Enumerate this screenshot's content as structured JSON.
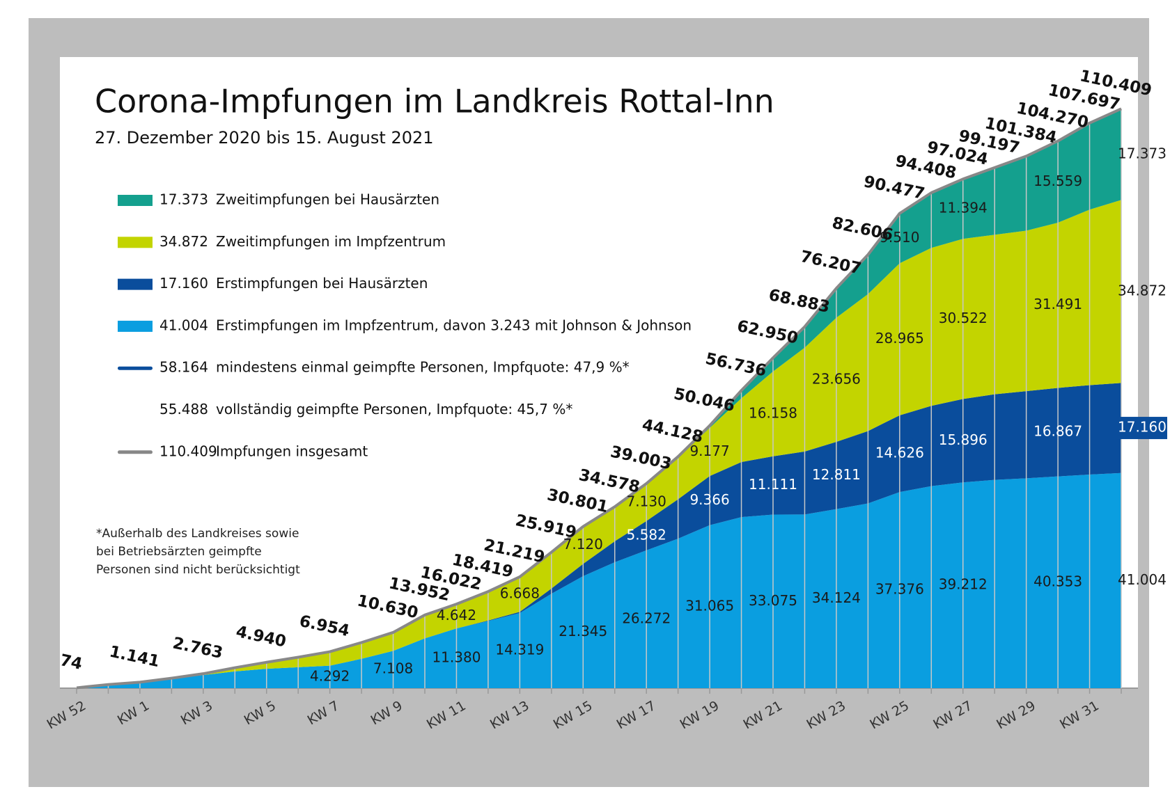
{
  "chart_data": {
    "type": "stacked_area",
    "title": "Corona-Impfungen im Landkreis Rottal-Inn",
    "subtitle": "27. Dezember 2020 bis 15. August 2021",
    "categories": [
      "KW 52",
      null,
      "KW 1",
      null,
      "KW 3",
      null,
      "KW 5",
      null,
      "KW 7",
      null,
      "KW 9",
      null,
      "KW 11",
      null,
      "KW 13",
      null,
      "KW 15",
      null,
      "KW 17",
      null,
      "KW 19",
      null,
      "KW 21",
      null,
      "KW 23",
      null,
      "KW 25",
      null,
      "KW 27",
      null,
      "KW 29",
      null,
      "KW 31",
      null
    ],
    "ylim": [
      0,
      120000
    ],
    "series": [
      {
        "name": "Erstimpfungen im Impfzentrum, davon 3.243 mit Johnson & Johnson",
        "legend_value": "41.004",
        "color": "#0a9ee0",
        "label_color": "#1a1a1a",
        "values": [
          74,
          700,
          1141,
          1800,
          2500,
          3200,
          3700,
          4000,
          4292,
          5600,
          7108,
          9500,
          11380,
          12800,
          14319,
          18000,
          21345,
          24000,
          26272,
          28500,
          31065,
          32600,
          33075,
          33100,
          34124,
          35200,
          37376,
          38500,
          39212,
          39700,
          40000,
          40353,
          40700,
          41004
        ],
        "value_labels": [
          null,
          null,
          null,
          null,
          null,
          null,
          null,
          null,
          "4.292",
          null,
          "7.108",
          null,
          "11.380",
          null,
          "14.319",
          null,
          "21.345",
          null,
          "26.272",
          null,
          "31.065",
          null,
          "33.075",
          null,
          "34.124",
          null,
          "37.376",
          null,
          "39.212",
          null,
          null,
          "40.353",
          null,
          "41.004"
        ]
      },
      {
        "name": "Erstimpfungen bei Hausärzten",
        "legend_value": "17.160",
        "color": "#0a4d9c",
        "label_color": "#ffffff",
        "end_label_box": true,
        "values": [
          0,
          0,
          0,
          0,
          0,
          0,
          0,
          0,
          0,
          0,
          0,
          0,
          0,
          100,
          232,
          1000,
          2336,
          4000,
          5582,
          7500,
          9366,
          10500,
          11111,
          12000,
          12811,
          13800,
          14626,
          15300,
          15896,
          16300,
          16600,
          16867,
          17050,
          17160
        ],
        "value_labels": [
          null,
          null,
          null,
          null,
          null,
          null,
          null,
          null,
          null,
          null,
          null,
          null,
          null,
          null,
          null,
          null,
          null,
          null,
          "5.582",
          null,
          "9.366",
          null,
          "11.111",
          null,
          "12.811",
          null,
          "14.626",
          null,
          "15.896",
          null,
          null,
          "16.867",
          null,
          "17.160"
        ]
      },
      {
        "name": "Zweitimpfungen im Impfzentrum",
        "legend_value": "34.872",
        "color": "#c3d400",
        "label_color": "#1a1a1a",
        "values": [
          0,
          0,
          0,
          100,
          263,
          700,
          1240,
          1900,
          2662,
          3100,
          3522,
          4452,
          4642,
          5519,
          6668,
          6919,
          7120,
          6578,
          7130,
          7978,
          9177,
          12136,
          16158,
          19783,
          23656,
          26106,
          28965,
          30108,
          30522,
          30397,
          30584,
          31491,
          33447,
          34872
        ],
        "value_labels": [
          null,
          null,
          null,
          null,
          null,
          null,
          null,
          null,
          null,
          null,
          null,
          null,
          "4.642",
          null,
          "6.668",
          null,
          "7.120",
          null,
          "7.130",
          null,
          "9.177",
          null,
          "16.158",
          null,
          "23.656",
          null,
          "28.965",
          null,
          "30.522",
          null,
          null,
          "31.491",
          null,
          "34.872"
        ]
      },
      {
        "name": "Zweitimpfungen bei Hausärzten",
        "legend_value": "17.373",
        "color": "#14a08e",
        "label_color": "#1a1a1a",
        "values": [
          0,
          0,
          0,
          0,
          0,
          0,
          0,
          0,
          0,
          0,
          0,
          0,
          0,
          0,
          0,
          0,
          0,
          0,
          19,
          150,
          438,
          1500,
          2606,
          4000,
          5616,
          7500,
          9510,
          10500,
          11394,
          12800,
          14200,
          15559,
          16500,
          17373
        ],
        "value_labels": [
          null,
          null,
          null,
          null,
          null,
          null,
          null,
          null,
          null,
          null,
          null,
          null,
          null,
          null,
          null,
          null,
          null,
          null,
          null,
          null,
          null,
          null,
          null,
          null,
          null,
          null,
          "9.510",
          null,
          "11.394",
          null,
          null,
          "15.559",
          null,
          "17.373"
        ]
      }
    ],
    "total": {
      "name": "Impfungen insgesamt",
      "legend_value": "110.409",
      "color": "#888888",
      "values": [
        74,
        700,
        1141,
        1900,
        2763,
        3900,
        4940,
        5900,
        6954,
        8700,
        10630,
        13952,
        16022,
        18419,
        21219,
        25919,
        30801,
        34578,
        39003,
        44128,
        50046,
        56736,
        62950,
        68883,
        76207,
        82606,
        90477,
        94408,
        97024,
        99197,
        101384,
        104270,
        107697,
        110409
      ],
      "value_labels": [
        "74",
        null,
        "1.141",
        null,
        "2.763",
        null,
        "4.940",
        null,
        "6.954",
        null,
        "10.630",
        "13.952",
        "16.022",
        "18.419",
        "21.219",
        "25.919",
        "30.801",
        "34.578",
        "39.003",
        "44.128",
        "50.046",
        "56.736",
        "62.950",
        "68.883",
        "76.207",
        "82.606",
        "90.477",
        "94.408",
        "97.024",
        "99.197",
        "101.384",
        "104.270",
        "107.697",
        "110.409"
      ]
    },
    "legend_extra": [
      {
        "legend_value": "58.164",
        "name": "mindestens einmal geimpfte Personen, Impfquote: 47,9 %*",
        "color": "#0a4d9c"
      },
      {
        "legend_value": "55.488",
        "name": "vollständig geimpfte Personen, Impfquote: 45,7 %*"
      }
    ],
    "footnote": [
      "*Außerhalb des Landkreises sowie",
      "bei Betriebsärzten geimpfte",
      "Personen sind nicht berücksichtigt"
    ]
  }
}
